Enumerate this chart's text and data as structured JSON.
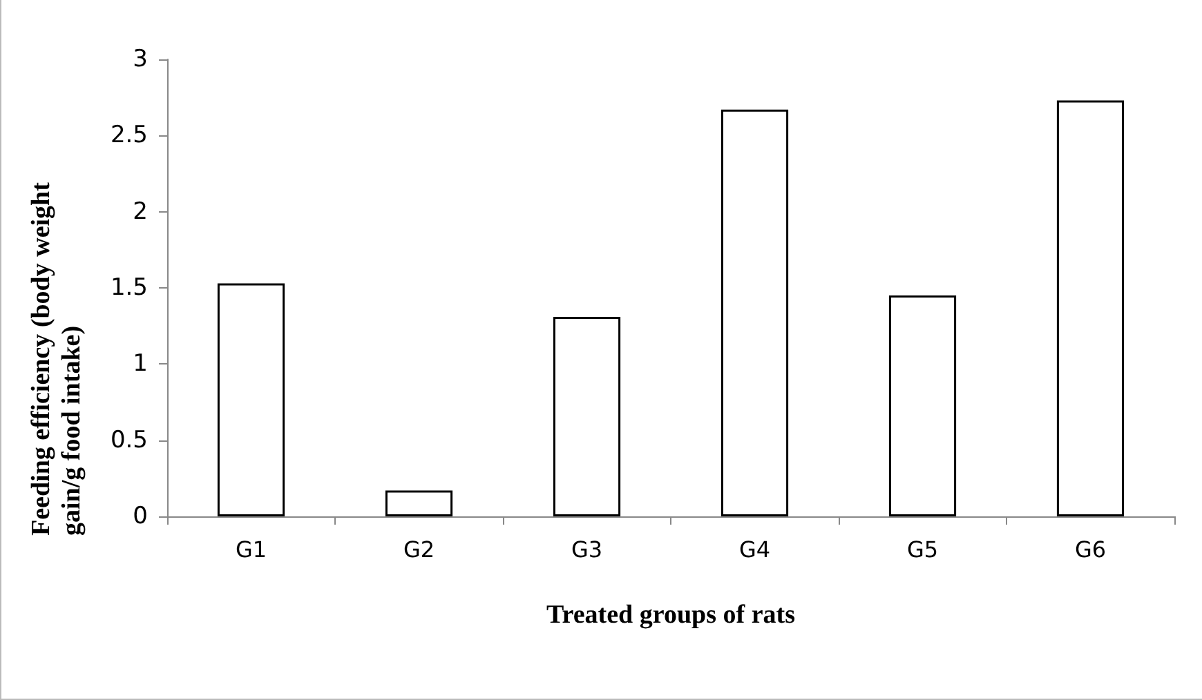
{
  "chart_data": {
    "type": "bar",
    "xlabel": "Treated groups of rats",
    "ylabel": "Feeding efficiency (body weight gain/g food intake)",
    "categories": [
      "G1",
      "G2",
      "G3",
      "G4",
      "G5",
      "G6"
    ],
    "values": [
      1.53,
      0.17,
      1.31,
      2.67,
      1.45,
      2.73
    ],
    "color": "#ffffff",
    "ylim": [
      0,
      3
    ],
    "yticks": [
      0,
      0.5,
      1,
      1.5,
      2,
      2.5,
      3
    ],
    "grid": false
  }
}
